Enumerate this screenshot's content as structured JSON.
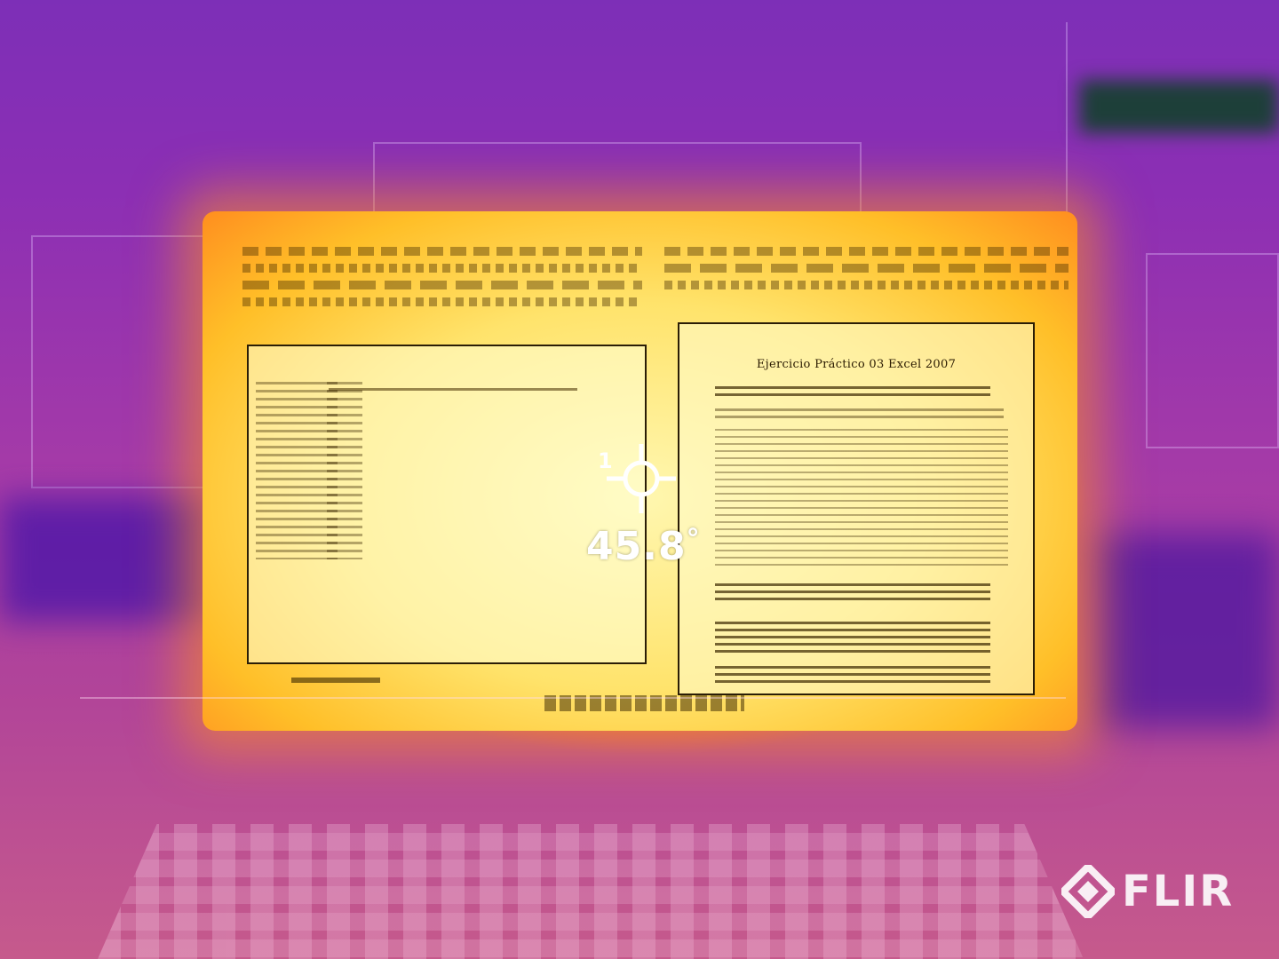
{
  "overlay": {
    "spot_index": "1",
    "temperature_value": "45.8",
    "temperature_unit": "°",
    "brand": "FLIR"
  },
  "screen": {
    "document_title": "Ejercicio Práctico 03 Excel 2007"
  },
  "icons": {
    "crosshair": "crosshair-icon",
    "logo": "flir-diamond-icon"
  },
  "palette": {
    "hot": "#fff7b0",
    "warm": "#ffbf28",
    "mid": "#c65a8c",
    "cool": "#7d2fb7"
  }
}
